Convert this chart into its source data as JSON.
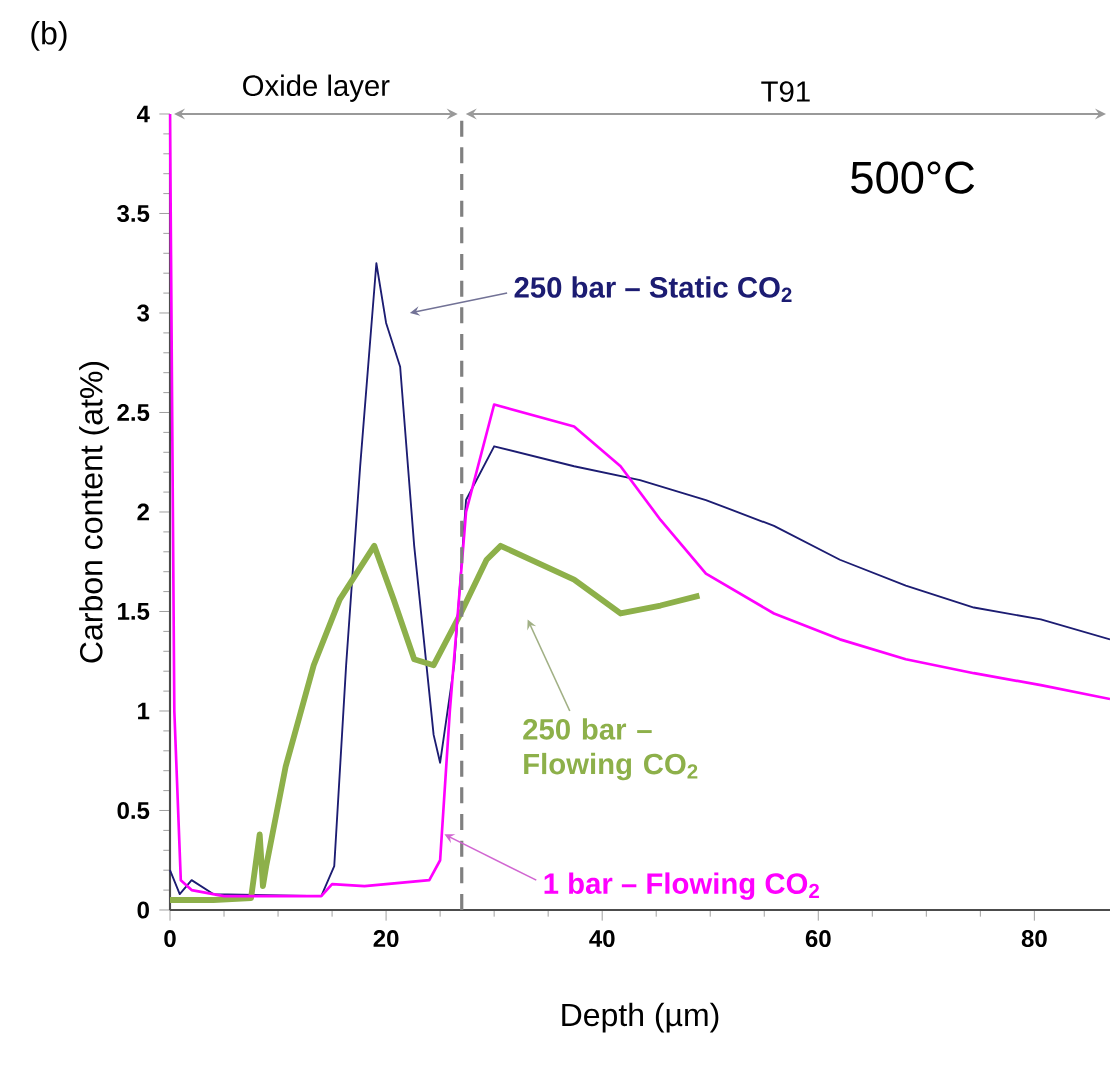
{
  "chart_data": {
    "type": "line",
    "xlabel": "Depth (µm)",
    "ylabel": "Carbon content (at%)",
    "annotations": [
      "(b)",
      "500°C",
      "Oxide layer",
      "T91"
    ],
    "xlim": [
      0,
      87
    ],
    "ylim": [
      0,
      4
    ],
    "xticks": [
      0,
      20,
      40,
      60,
      80
    ],
    "yticks": [
      0,
      0.5,
      1,
      1.5,
      2,
      2.5,
      3,
      3.5,
      4
    ],
    "ref_lines": [
      {
        "axis": "x",
        "value": 27,
        "color": "#808080",
        "line_style": "dashed"
      }
    ],
    "series": [
      {
        "name": "250 bar – Static CO$_{2}$",
        "color": "#1c1c72",
        "x": [
          0,
          0.9,
          2,
          4,
          14,
          15.2,
          16.3,
          17.6,
          19.1,
          20,
          21.3,
          22.6,
          24.4,
          25,
          26.3,
          27.4,
          30,
          37.4,
          43.5,
          49.6,
          55.9,
          62,
          68.1,
          74.4,
          80.6,
          87
        ],
        "values": [
          0.2,
          0.08,
          0.15,
          0.08,
          0.07,
          0.22,
          1.23,
          2.23,
          3.25,
          2.95,
          2.73,
          1.83,
          0.88,
          0.74,
          1.23,
          2.06,
          2.33,
          2.23,
          2.16,
          2.06,
          1.93,
          1.76,
          1.63,
          1.52,
          1.46,
          1.36
        ]
      },
      {
        "name": "250 bar – Flowing CO$_{2}$",
        "color": "#8db04a",
        "x": [
          0,
          4,
          7.5,
          8.3,
          8.6,
          8.9,
          10.7,
          13.3,
          15.7,
          18.9,
          20.7,
          22.6,
          24.4,
          26.9,
          29.3,
          30.6,
          37.4,
          41.7,
          45.4,
          49
        ],
        "values": [
          0.05,
          0.05,
          0.06,
          0.38,
          0.12,
          0.22,
          0.72,
          1.23,
          1.56,
          1.83,
          1.56,
          1.26,
          1.23,
          1.49,
          1.76,
          1.83,
          1.66,
          1.49,
          1.53,
          1.58
        ]
      },
      {
        "name": "1 bar – Flowing CO$_{2}$",
        "color": "#ff00ff",
        "x": [
          0,
          0.4,
          1,
          2,
          5,
          14,
          15,
          18,
          24,
          25,
          25.9,
          27.4,
          30,
          37.4,
          41.7,
          45.4,
          49.6,
          55.9,
          62,
          68.1,
          74.4,
          80.6,
          87
        ],
        "values": [
          4,
          1,
          0.15,
          0.1,
          0.07,
          0.07,
          0.13,
          0.12,
          0.15,
          0.25,
          1,
          2,
          2.54,
          2.43,
          2.23,
          1.96,
          1.69,
          1.49,
          1.36,
          1.26,
          1.19,
          1.13,
          1.06
        ]
      }
    ]
  }
}
